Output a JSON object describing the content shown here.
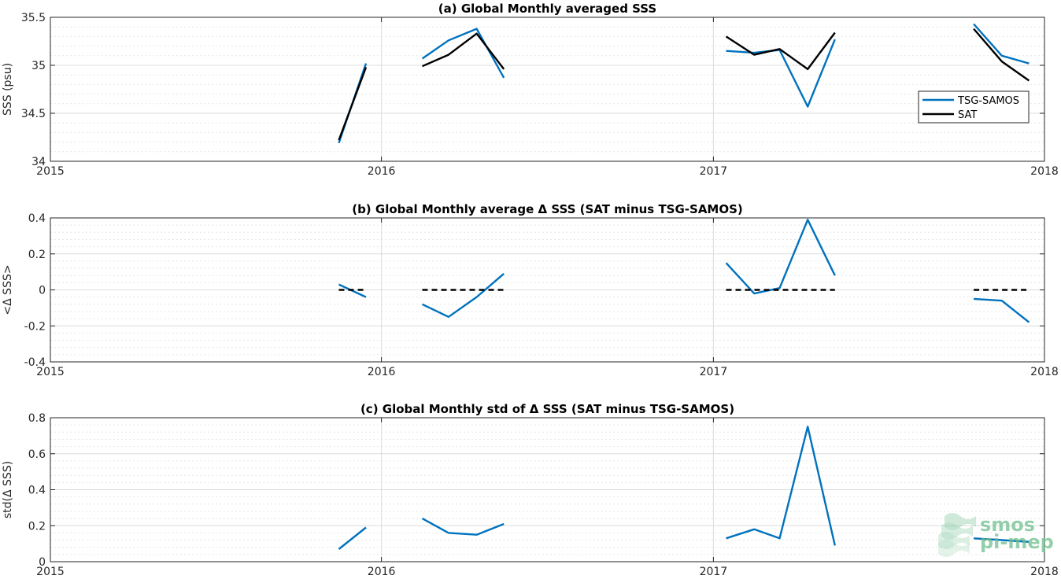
{
  "colors": {
    "tsg": "#0072bd",
    "sat": "#000000",
    "zero": "#000000",
    "logo": "#6fbf8f"
  },
  "legend": {
    "tsg_label": "TSG-SAMOS",
    "sat_label": "SAT",
    "placement": "inside-right"
  },
  "logo": {
    "line1": "smos",
    "line2": "pi-mep"
  },
  "chart_data": [
    {
      "id": "a",
      "type": "line",
      "title": "(a) Global Monthly averaged SSS",
      "ylabel": "SSS (psu)",
      "xlabel": "",
      "xlim": [
        "2015-01-01",
        "2018-01-01"
      ],
      "xticks": [
        "2015",
        "2016",
        "2017",
        "2018"
      ],
      "ylim": [
        34,
        35.5
      ],
      "yticks": [
        "34",
        "34.5",
        "35",
        "35.5"
      ],
      "grid": true,
      "series": [
        {
          "name": "TSG-SAMOS",
          "color": "#0072bd",
          "segments": [
            [
              [
                "2015-11-15",
                34.19
              ],
              [
                "2015-12-15",
                35.02
              ]
            ],
            [
              [
                "2016-02-15",
                35.07
              ],
              [
                "2016-03-15",
                35.26
              ],
              [
                "2016-04-15",
                35.38
              ],
              [
                "2016-05-15",
                34.87
              ]
            ],
            [
              [
                "2017-01-15",
                35.15
              ],
              [
                "2017-02-15",
                35.13
              ],
              [
                "2017-03-15",
                35.16
              ],
              [
                "2017-04-15",
                34.57
              ],
              [
                "2017-05-15",
                35.27
              ]
            ],
            [
              [
                "2017-10-15",
                35.43
              ],
              [
                "2017-11-15",
                35.1
              ],
              [
                "2017-12-15",
                35.02
              ]
            ]
          ]
        },
        {
          "name": "SAT",
          "color": "#000000",
          "segments": [
            [
              [
                "2015-11-15",
                34.22
              ],
              [
                "2015-12-15",
                34.98
              ]
            ],
            [
              [
                "2016-02-15",
                34.99
              ],
              [
                "2016-03-15",
                35.11
              ],
              [
                "2016-04-15",
                35.33
              ],
              [
                "2016-05-15",
                34.96
              ]
            ],
            [
              [
                "2017-01-15",
                35.3
              ],
              [
                "2017-02-15",
                35.11
              ],
              [
                "2017-03-15",
                35.17
              ],
              [
                "2017-04-15",
                34.96
              ],
              [
                "2017-05-15",
                35.34
              ]
            ],
            [
              [
                "2017-10-15",
                35.38
              ],
              [
                "2017-11-15",
                35.04
              ],
              [
                "2017-12-15",
                34.84
              ]
            ]
          ]
        }
      ]
    },
    {
      "id": "b",
      "type": "line",
      "title": "(b) Global Monthly average Δ SSS (SAT minus TSG-SAMOS)",
      "ylabel": "<Δ SSS>",
      "xlabel": "",
      "xlim": [
        "2015-01-01",
        "2018-01-01"
      ],
      "xticks": [
        "2015",
        "2016",
        "2017",
        "2018"
      ],
      "ylim": [
        -0.4,
        0.4
      ],
      "yticks": [
        "-0.4",
        "-0.2",
        "0",
        "0.2",
        "0.4"
      ],
      "grid": true,
      "series": [
        {
          "name": "",
          "color": "#0072bd",
          "segments": [
            [
              [
                "2015-11-15",
                0.03
              ],
              [
                "2015-12-15",
                -0.04
              ]
            ],
            [
              [
                "2016-02-15",
                -0.08
              ],
              [
                "2016-03-15",
                -0.15
              ],
              [
                "2016-04-15",
                -0.04
              ],
              [
                "2016-05-15",
                0.09
              ]
            ],
            [
              [
                "2017-01-15",
                0.15
              ],
              [
                "2017-02-15",
                -0.02
              ],
              [
                "2017-03-15",
                0.01
              ],
              [
                "2017-04-15",
                0.39
              ],
              [
                "2017-05-15",
                0.08
              ]
            ],
            [
              [
                "2017-10-15",
                -0.05
              ],
              [
                "2017-11-15",
                -0.06
              ],
              [
                "2017-12-15",
                -0.18
              ]
            ]
          ]
        },
        {
          "name": "",
          "color": "#000000",
          "dashed": true,
          "segments": [
            [
              [
                "2015-11-15",
                0
              ],
              [
                "2015-12-15",
                0
              ]
            ],
            [
              [
                "2016-02-15",
                0
              ],
              [
                "2016-05-15",
                0
              ]
            ],
            [
              [
                "2017-01-15",
                0
              ],
              [
                "2017-05-15",
                0
              ]
            ],
            [
              [
                "2017-10-15",
                0
              ],
              [
                "2017-12-15",
                0
              ]
            ]
          ]
        }
      ]
    },
    {
      "id": "c",
      "type": "line",
      "title": "(c) Global Monthly std of Δ SSS (SAT minus TSG-SAMOS)",
      "ylabel": "std(Δ SSS)",
      "xlabel": "",
      "xlim": [
        "2015-01-01",
        "2018-01-01"
      ],
      "xticks": [
        "2015",
        "2016",
        "2017",
        "2018"
      ],
      "ylim": [
        0,
        0.8
      ],
      "yticks": [
        "0",
        "0.2",
        "0.4",
        "0.6",
        "0.8"
      ],
      "grid": true,
      "series": [
        {
          "name": "",
          "color": "#0072bd",
          "segments": [
            [
              [
                "2015-11-15",
                0.07
              ],
              [
                "2015-12-15",
                0.19
              ]
            ],
            [
              [
                "2016-02-15",
                0.24
              ],
              [
                "2016-03-15",
                0.16
              ],
              [
                "2016-04-15",
                0.15
              ],
              [
                "2016-05-15",
                0.21
              ]
            ],
            [
              [
                "2017-01-15",
                0.13
              ],
              [
                "2017-02-15",
                0.18
              ],
              [
                "2017-03-15",
                0.13
              ],
              [
                "2017-04-15",
                0.75
              ],
              [
                "2017-05-15",
                0.09
              ]
            ],
            [
              [
                "2017-10-15",
                0.13
              ],
              [
                "2017-11-15",
                0.12
              ],
              [
                "2017-12-15",
                0.11
              ]
            ]
          ]
        }
      ]
    }
  ]
}
